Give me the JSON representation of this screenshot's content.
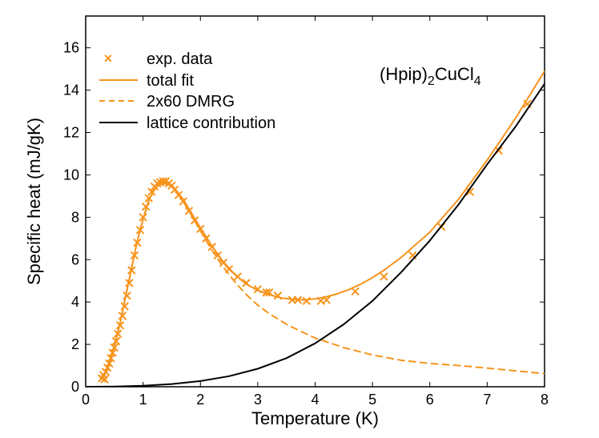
{
  "chart_data": {
    "type": "line",
    "xlabel": "Temperature (K)",
    "ylabel": "Specific heat (mJ/gK)",
    "xlim": [
      0,
      8
    ],
    "ylim": [
      0,
      17.5
    ],
    "xticks": [
      "0",
      "1",
      "2",
      "3",
      "4",
      "5",
      "6",
      "7",
      "8"
    ],
    "yticks": [
      "0",
      "2",
      "4",
      "6",
      "8",
      "10",
      "12",
      "14",
      "16"
    ],
    "annotation": {
      "main": "(Hpip)",
      "sub1": "2",
      "mid": "CuCl",
      "sub2": "4"
    },
    "colors": {
      "orange": "#f7941d",
      "black": "#000000"
    },
    "series": [
      {
        "name": "exp. data",
        "style": "markers-x",
        "color": "#f7941d",
        "x": [
          0.28,
          0.31,
          0.33,
          0.35,
          0.38,
          0.41,
          0.44,
          0.47,
          0.5,
          0.53,
          0.56,
          0.6,
          0.64,
          0.68,
          0.72,
          0.76,
          0.8,
          0.85,
          0.9,
          0.95,
          1.0,
          1.05,
          1.1,
          1.15,
          1.2,
          1.25,
          1.3,
          1.35,
          1.4,
          1.45,
          1.5,
          1.55,
          1.62,
          1.7,
          1.8,
          1.9,
          2.0,
          2.1,
          2.2,
          2.3,
          2.4,
          2.5,
          2.65,
          2.8,
          3.0,
          3.15,
          3.2,
          3.35,
          3.6,
          3.7,
          3.85,
          4.1,
          4.2,
          4.7,
          5.2,
          5.7,
          6.2,
          6.7,
          7.2,
          7.7
        ],
        "y": [
          0.4,
          0.55,
          0.35,
          0.7,
          0.9,
          1.1,
          1.35,
          1.6,
          1.85,
          2.15,
          2.5,
          2.9,
          3.35,
          3.8,
          4.3,
          4.9,
          5.5,
          6.2,
          6.8,
          7.4,
          8.0,
          8.5,
          8.9,
          9.2,
          9.45,
          9.6,
          9.65,
          9.7,
          9.7,
          9.6,
          9.5,
          9.3,
          9.05,
          8.75,
          8.3,
          7.85,
          7.45,
          7.0,
          6.6,
          6.2,
          5.85,
          5.55,
          5.2,
          4.9,
          4.6,
          4.45,
          4.45,
          4.3,
          4.1,
          4.1,
          4.05,
          4.05,
          4.1,
          4.5,
          5.2,
          6.2,
          7.55,
          9.2,
          11.15,
          13.35
        ]
      },
      {
        "name": "total fit",
        "style": "solid",
        "color": "#f7941d",
        "x": [
          0.3,
          0.4,
          0.5,
          0.6,
          0.7,
          0.8,
          0.9,
          1.0,
          1.1,
          1.2,
          1.3,
          1.4,
          1.5,
          1.6,
          1.7,
          1.8,
          2.0,
          2.2,
          2.4,
          2.6,
          2.8,
          3.0,
          3.2,
          3.4,
          3.6,
          3.8,
          4.0,
          4.2,
          4.4,
          4.6,
          4.8,
          5.0,
          5.2,
          5.5,
          6.0,
          6.5,
          7.0,
          7.5,
          8.0
        ],
        "y": [
          0.4,
          1.0,
          1.9,
          3.0,
          4.3,
          5.6,
          6.9,
          7.9,
          8.8,
          9.3,
          9.6,
          9.65,
          9.5,
          9.2,
          8.85,
          8.4,
          7.5,
          6.65,
          5.9,
          5.3,
          4.85,
          4.55,
          4.35,
          4.2,
          4.12,
          4.1,
          4.15,
          4.25,
          4.4,
          4.6,
          4.85,
          5.15,
          5.5,
          6.1,
          7.3,
          8.85,
          10.7,
          12.7,
          14.9
        ]
      },
      {
        "name": "2x60 DMRG",
        "style": "dashed",
        "color": "#f7941d",
        "x": [
          0.3,
          0.4,
          0.5,
          0.6,
          0.7,
          0.8,
          0.9,
          1.0,
          1.1,
          1.2,
          1.3,
          1.4,
          1.5,
          1.6,
          1.7,
          1.8,
          2.0,
          2.2,
          2.4,
          2.6,
          2.8,
          3.0,
          3.2,
          3.5,
          3.8,
          4.0,
          4.5,
          5.0,
          5.5,
          6.0,
          6.5,
          7.0,
          7.5,
          8.0
        ],
        "y": [
          0.4,
          1.0,
          1.9,
          3.0,
          4.3,
          5.6,
          6.9,
          7.9,
          8.8,
          9.3,
          9.55,
          9.6,
          9.45,
          9.15,
          8.75,
          8.3,
          7.35,
          6.45,
          5.65,
          4.95,
          4.35,
          3.85,
          3.45,
          2.95,
          2.55,
          2.3,
          1.85,
          1.5,
          1.25,
          1.1,
          1.0,
          0.88,
          0.75,
          0.62
        ]
      },
      {
        "name": "lattice contribution",
        "style": "solid",
        "color": "#000000",
        "x": [
          0,
          0.5,
          1.0,
          1.5,
          2.0,
          2.5,
          3.0,
          3.5,
          4.0,
          4.5,
          5.0,
          5.5,
          6.0,
          6.5,
          7.0,
          7.5,
          8.0
        ],
        "y": [
          0,
          0.01,
          0.05,
          0.13,
          0.27,
          0.5,
          0.85,
          1.35,
          2.05,
          2.95,
          4.05,
          5.4,
          6.9,
          8.6,
          10.5,
          12.3,
          14.3
        ]
      }
    ],
    "legend": [
      "exp. data",
      "total fit",
      "2x60 DMRG",
      "lattice contribution"
    ]
  }
}
